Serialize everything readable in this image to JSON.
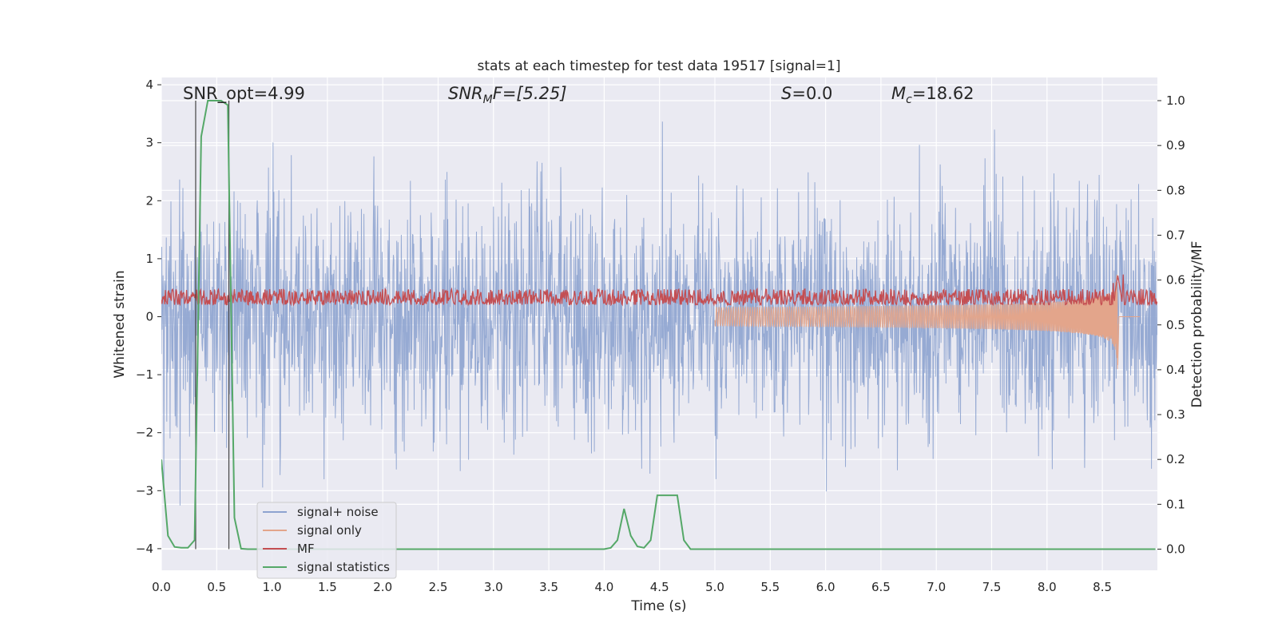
{
  "chart_data": {
    "type": "line",
    "title": "stats at each timestep for test data 19517 [signal=1]",
    "xlabel": "Time (s)",
    "ylabel": "Whitened strain",
    "ylabel_right": "Detection probability/MF",
    "xlim": [
      0,
      9.0
    ],
    "ylim": [
      -4.4,
      4.1
    ],
    "ylim_right": [
      -0.05,
      1.04
    ],
    "x_ticks": [
      "0.0",
      "0.5",
      "1.0",
      "1.5",
      "2.0",
      "2.5",
      "3.0",
      "3.5",
      "4.0",
      "4.5",
      "5.0",
      "5.5",
      "6.0",
      "6.5",
      "7.0",
      "7.5",
      "8.0",
      "8.5"
    ],
    "y_ticks": [
      "4",
      "3",
      "2",
      "1",
      "0",
      "−1",
      "−2",
      "−3",
      "−4"
    ],
    "y_right_ticks": [
      "1.0",
      "0.9",
      "0.8",
      "0.7",
      "0.6",
      "0.5",
      "0.4",
      "0.3",
      "0.2",
      "0.1",
      "0.0"
    ],
    "grid": true,
    "legend_position": "lower-left",
    "annotations": {
      "snr_opt": "SNR_opt=4.99",
      "snr_mf_base": "SNR",
      "snr_mf_sub": "M",
      "snr_mf_rest": "F=[5.25]",
      "s_base": "S",
      "s_rest": "=0.0",
      "mc_base": "M",
      "mc_sub": "c",
      "mc_rest": "=18.62"
    },
    "series": [
      {
        "name": "signal+ noise",
        "color": "#8da3cf",
        "axis": "left",
        "noise_std": 1.0
      },
      {
        "name": "signal only",
        "color": "#e3a58b",
        "axis": "left",
        "merger_time": 8.64,
        "peak_amplitude": 1.0
      },
      {
        "name": "MF",
        "color": "#c44e52",
        "axis": "right",
        "baseline": 0.555,
        "peak": [
          8.64,
          0.61
        ]
      },
      {
        "name": "signal statistics",
        "color": "#55a868",
        "axis": "right",
        "x": [
          0.0,
          0.06,
          0.12,
          0.18,
          0.24,
          0.3,
          0.36,
          0.42,
          0.48,
          0.54,
          0.6,
          0.66,
          0.72,
          0.78,
          4.0,
          4.06,
          4.12,
          4.18,
          4.24,
          4.3,
          4.36,
          4.42,
          4.48,
          4.54,
          4.6,
          4.66,
          4.72,
          4.78,
          4.84,
          8.98
        ],
        "values": [
          0.2,
          0.03,
          0.005,
          0.003,
          0.003,
          0.02,
          0.92,
          1.0,
          1.0,
          1.0,
          0.99,
          0.07,
          0.001,
          0.0,
          0.0,
          0.003,
          0.02,
          0.09,
          0.03,
          0.006,
          0.003,
          0.02,
          0.12,
          0.12,
          0.12,
          0.12,
          0.02,
          0.0,
          0.0,
          0.0
        ]
      }
    ],
    "vertical_lines": [
      0.31,
      0.61
    ]
  }
}
